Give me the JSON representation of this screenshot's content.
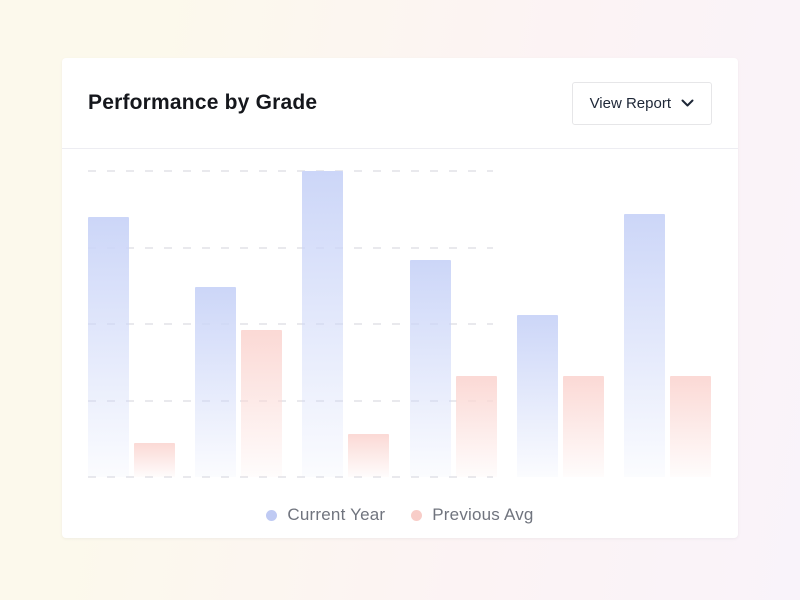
{
  "card": {
    "title": "Performance by Grade",
    "view_report": {
      "label": "View Report",
      "icon": "chevron-down-icon"
    }
  },
  "legend": {
    "items": [
      {
        "label": "Current Year",
        "dot_color": "#bfcaf3"
      },
      {
        "label": "Previous Avg",
        "dot_color": "#f8cdc8"
      }
    ]
  },
  "colors": {
    "page_bg_left": "#fcf9ec",
    "page_bg_mid": "#fcf3f4",
    "page_bg_right": "#f9f3fa",
    "card_bg": "#ffffff",
    "divider": "#ededf2",
    "grid": "#e9e9ed",
    "bar_current_year_top": "#ccd6f8",
    "bar_previous_avg_top": "#fbd9d5",
    "title_text": "#15171c",
    "button_text": "#1e2737",
    "legend_text": "#70747e"
  },
  "chart_data": {
    "type": "bar",
    "title": "Performance by Grade",
    "categories": [
      "",
      "",
      "",
      "",
      "",
      ""
    ],
    "series": [
      {
        "name": "Current Year",
        "color": "#ccd6f8",
        "values": [
          85,
          62,
          100,
          71,
          53,
          86
        ]
      },
      {
        "name": "Previous Avg",
        "color": "#fbd9d5",
        "values": [
          11,
          48,
          14,
          33,
          33,
          33
        ]
      }
    ],
    "ylim": [
      0,
      100
    ],
    "gridlines_y": [
      0,
      25,
      50,
      75,
      100
    ],
    "grid_style": "dashed",
    "grid_span_fraction": 0.65,
    "x_axis_labels_visible": false,
    "y_axis_labels_visible": false,
    "legend_position": "bottom"
  }
}
